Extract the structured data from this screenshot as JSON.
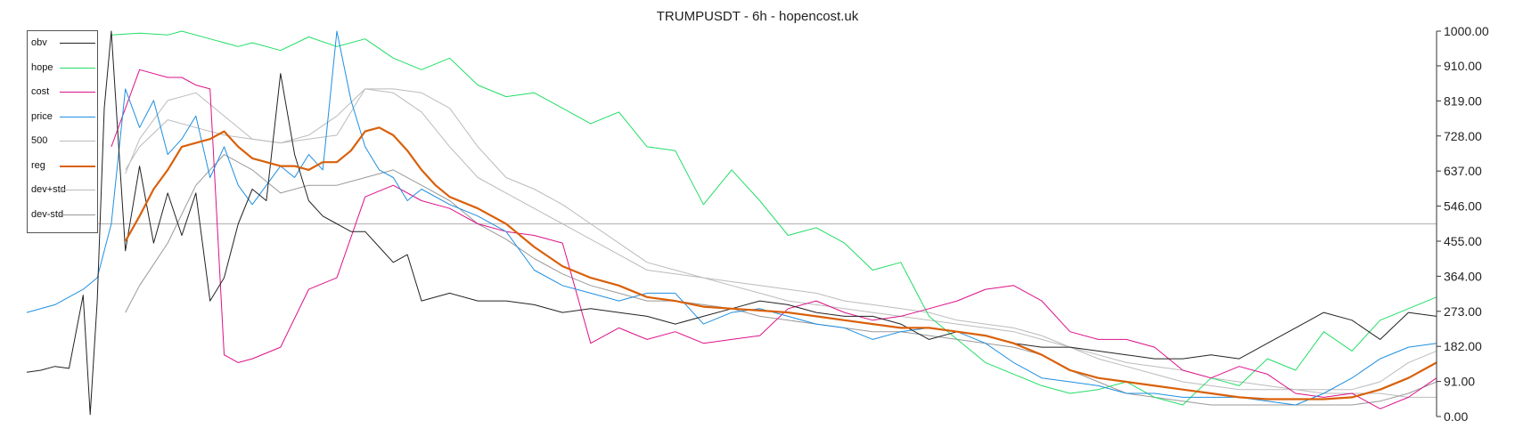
{
  "title": "TRUMPUSDT - 6h - hopencost.uk",
  "legend": [
    {
      "label": "obv",
      "color": "#222222",
      "width": 1
    },
    {
      "label": "hope",
      "color": "#22dd66",
      "width": 1
    },
    {
      "label": "cost",
      "color": "#dd1188",
      "width": 1
    },
    {
      "label": "price",
      "color": "#1f8fe0",
      "width": 1
    },
    {
      "label": "500",
      "color": "#bbbbbb",
      "width": 1
    },
    {
      "label": "reg",
      "color": "#d9600a",
      "width": 2.2
    },
    {
      "label": "dev+std",
      "color": "#bbbbbb",
      "width": 1
    },
    {
      "label": "dev-std",
      "color": "#999999",
      "width": 1
    }
  ],
  "chart_data": {
    "type": "line",
    "title": "TRUMPUSDT - 6h - hopencost.uk",
    "xlabel": "",
    "ylabel": "",
    "ylim": [
      0,
      1000
    ],
    "xlim": [
      0,
      100
    ],
    "yticks": [
      "1000.00",
      "910.00",
      "819.00",
      "728.00",
      "637.00",
      "546.00",
      "455.00",
      "364.00",
      "273.00",
      "182.00",
      "91.00",
      "0.00"
    ],
    "ytick_values": [
      1000,
      910,
      819,
      728,
      637,
      546,
      455,
      364,
      273,
      182,
      91,
      0
    ],
    "hline": 500,
    "legend_position": "top-left",
    "grid": false,
    "series": [
      {
        "name": "hope",
        "x": [
          6,
          8,
          10,
          11,
          13,
          15,
          16,
          18,
          20,
          22,
          24,
          26,
          28,
          30,
          32,
          34,
          36,
          38,
          40,
          42,
          44,
          46,
          48,
          50,
          52,
          54,
          56,
          58,
          60,
          62,
          64,
          66,
          68,
          70,
          72,
          74,
          76,
          78,
          80,
          82,
          84,
          86,
          88,
          90,
          92,
          94,
          96,
          98,
          100
        ],
        "y": [
          990,
          995,
          990,
          1000,
          980,
          960,
          970,
          950,
          985,
          960,
          980,
          930,
          900,
          930,
          860,
          830,
          840,
          800,
          760,
          790,
          700,
          690,
          550,
          640,
          560,
          470,
          490,
          450,
          380,
          400,
          260,
          200,
          140,
          110,
          80,
          60,
          70,
          90,
          50,
          30,
          100,
          80,
          150,
          120,
          220,
          170,
          250,
          280,
          310
        ]
      },
      {
        "name": "cost",
        "x": [
          6,
          8,
          10,
          11,
          12,
          13,
          14,
          15,
          16,
          18,
          20,
          22,
          24,
          26,
          28,
          30,
          32,
          34,
          36,
          38,
          40,
          42,
          44,
          46,
          48,
          50,
          52,
          54,
          56,
          58,
          60,
          62,
          64,
          66,
          68,
          70,
          72,
          74,
          76,
          78,
          80,
          82,
          84,
          86,
          88,
          90,
          92,
          94,
          96,
          98,
          100
        ],
        "y": [
          700,
          900,
          880,
          880,
          860,
          850,
          160,
          140,
          150,
          180,
          330,
          360,
          570,
          600,
          560,
          540,
          500,
          480,
          470,
          450,
          190,
          230,
          200,
          220,
          190,
          200,
          210,
          280,
          300,
          270,
          250,
          260,
          280,
          300,
          330,
          340,
          300,
          220,
          200,
          200,
          180,
          120,
          100,
          130,
          110,
          60,
          50,
          60,
          20,
          50,
          100
        ]
      },
      {
        "name": "price",
        "x": [
          0,
          2,
          4,
          5,
          6,
          7,
          8,
          9,
          10,
          11,
          12,
          13,
          14,
          15,
          16,
          17,
          18,
          19,
          20,
          21,
          22,
          23,
          24,
          25,
          26,
          27,
          28,
          30,
          32,
          34,
          36,
          38,
          40,
          42,
          44,
          46,
          48,
          50,
          52,
          54,
          56,
          58,
          60,
          62,
          64,
          66,
          68,
          70,
          72,
          74,
          76,
          78,
          80,
          82,
          84,
          86,
          88,
          90,
          92,
          94,
          96,
          98,
          100
        ],
        "y": [
          270,
          290,
          330,
          360,
          500,
          850,
          750,
          820,
          680,
          720,
          780,
          620,
          700,
          600,
          550,
          600,
          650,
          620,
          680,
          640,
          1000,
          820,
          700,
          640,
          620,
          560,
          590,
          550,
          520,
          480,
          380,
          340,
          320,
          300,
          320,
          320,
          240,
          270,
          280,
          260,
          240,
          230,
          200,
          220,
          230,
          220,
          190,
          140,
          100,
          90,
          80,
          60,
          60,
          50,
          50,
          50,
          40,
          30,
          60,
          100,
          150,
          180,
          190
        ]
      },
      {
        "name": "obv",
        "x": [
          0,
          1,
          2,
          3,
          4,
          4.5,
          5,
          5.5,
          6,
          7,
          8,
          9,
          10,
          11,
          12,
          13,
          14,
          15,
          16,
          17,
          18,
          19,
          20,
          21,
          22,
          23,
          24,
          25,
          26,
          27,
          28,
          30,
          32,
          34,
          36,
          38,
          40,
          42,
          44,
          46,
          48,
          50,
          52,
          54,
          56,
          58,
          60,
          62,
          64,
          66,
          68,
          70,
          72,
          74,
          76,
          78,
          80,
          82,
          84,
          86,
          88,
          90,
          92,
          94,
          96,
          98,
          100
        ],
        "y": [
          115,
          120,
          130,
          125,
          315,
          5,
          300,
          800,
          1000,
          430,
          650,
          450,
          580,
          470,
          580,
          300,
          360,
          500,
          590,
          560,
          890,
          680,
          560,
          520,
          500,
          480,
          480,
          440,
          400,
          420,
          300,
          320,
          300,
          300,
          290,
          270,
          280,
          270,
          260,
          240,
          260,
          280,
          300,
          290,
          270,
          260,
          260,
          240,
          200,
          220,
          210,
          190,
          180,
          180,
          170,
          160,
          150,
          150,
          160,
          150,
          190,
          230,
          270,
          250,
          200,
          270,
          260
        ]
      },
      {
        "name": "500",
        "x": [
          7,
          8,
          10,
          12,
          14,
          16,
          18,
          20,
          22,
          24,
          26,
          28,
          30,
          32,
          34,
          36,
          38,
          40,
          42,
          44,
          46,
          48,
          50,
          52,
          54,
          56,
          58,
          60,
          62,
          64,
          66,
          68,
          70,
          72,
          74,
          76,
          78,
          80,
          82,
          84,
          86,
          88,
          90,
          92,
          94,
          96,
          98,
          100
        ],
        "y": [
          640,
          700,
          770,
          750,
          730,
          720,
          710,
          720,
          730,
          850,
          840,
          790,
          700,
          620,
          580,
          540,
          500,
          460,
          420,
          380,
          370,
          360,
          340,
          320,
          300,
          290,
          280,
          270,
          260,
          250,
          240,
          230,
          220,
          200,
          180,
          160,
          140,
          130,
          120,
          100,
          90,
          80,
          70,
          60,
          60,
          60,
          50,
          50
        ]
      },
      {
        "name": "reg",
        "x": [
          7,
          8,
          9,
          10,
          11,
          12,
          13,
          14,
          15,
          16,
          17,
          18,
          19,
          20,
          21,
          22,
          23,
          24,
          25,
          26,
          27,
          28,
          29,
          30,
          32,
          34,
          36,
          38,
          40,
          42,
          44,
          46,
          48,
          50,
          52,
          54,
          56,
          58,
          60,
          62,
          64,
          66,
          68,
          70,
          72,
          74,
          76,
          78,
          80,
          82,
          84,
          86,
          88,
          90,
          92,
          94,
          96,
          98,
          100
        ],
        "y": [
          455,
          520,
          590,
          640,
          700,
          710,
          720,
          740,
          700,
          670,
          660,
          650,
          650,
          640,
          660,
          660,
          690,
          740,
          750,
          730,
          690,
          640,
          600,
          570,
          540,
          500,
          440,
          390,
          360,
          340,
          310,
          300,
          285,
          280,
          275,
          270,
          260,
          250,
          240,
          230,
          230,
          220,
          210,
          190,
          160,
          120,
          100,
          90,
          80,
          70,
          60,
          50,
          45,
          45,
          45,
          50,
          70,
          100,
          140
        ]
      },
      {
        "name": "dev+std",
        "x": [
          7,
          8,
          10,
          12,
          14,
          16,
          18,
          20,
          22,
          24,
          26,
          28,
          30,
          32,
          34,
          36,
          38,
          40,
          42,
          44,
          46,
          48,
          50,
          52,
          54,
          56,
          58,
          60,
          62,
          64,
          66,
          68,
          70,
          72,
          74,
          76,
          78,
          80,
          82,
          84,
          86,
          88,
          90,
          92,
          94,
          96,
          98,
          100
        ],
        "y": [
          630,
          720,
          820,
          840,
          780,
          720,
          710,
          730,
          780,
          850,
          850,
          840,
          800,
          700,
          620,
          590,
          550,
          500,
          450,
          400,
          380,
          360,
          350,
          340,
          330,
          320,
          300,
          290,
          280,
          270,
          250,
          240,
          230,
          210,
          180,
          150,
          130,
          110,
          90,
          80,
          70,
          70,
          70,
          70,
          70,
          90,
          140,
          170
        ]
      },
      {
        "name": "dev-std",
        "x": [
          7,
          8,
          10,
          12,
          14,
          16,
          18,
          20,
          22,
          24,
          26,
          28,
          30,
          32,
          34,
          36,
          38,
          40,
          42,
          44,
          46,
          48,
          50,
          52,
          54,
          56,
          58,
          60,
          62,
          64,
          66,
          68,
          70,
          72,
          74,
          76,
          78,
          80,
          82,
          84,
          86,
          88,
          90,
          92,
          94,
          96,
          98,
          100
        ],
        "y": [
          270,
          340,
          450,
          600,
          680,
          640,
          580,
          600,
          600,
          620,
          640,
          600,
          560,
          500,
          460,
          410,
          370,
          340,
          320,
          300,
          300,
          290,
          280,
          260,
          250,
          240,
          230,
          220,
          220,
          210,
          200,
          190,
          180,
          160,
          120,
          90,
          60,
          50,
          40,
          30,
          30,
          30,
          30,
          30,
          30,
          40,
          60,
          90
        ]
      }
    ]
  }
}
